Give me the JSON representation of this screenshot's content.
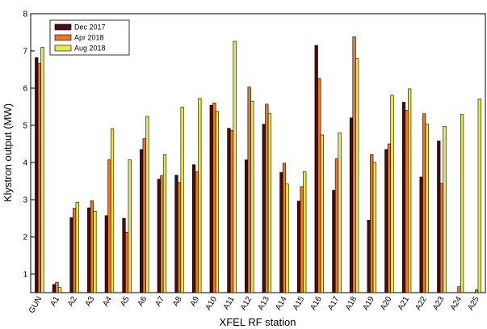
{
  "chart_data": {
    "type": "bar",
    "xlabel": "XFEL RF station",
    "ylabel": "Klystron output (MW)",
    "ylim": [
      0.5,
      8
    ],
    "yticks": [
      1,
      2,
      3,
      4,
      5,
      6,
      7,
      8
    ],
    "grid": false,
    "legend_position": "top-left",
    "categories": [
      "GUN",
      "A1",
      "A2",
      "A3",
      "A4",
      "A5",
      "A6",
      "A7",
      "A8",
      "A9",
      "A10",
      "A11",
      "A12",
      "A13",
      "A14",
      "A15",
      "A16",
      "A17",
      "A18",
      "A19",
      "A20",
      "A21",
      "A22",
      "A23",
      "A24",
      "A25"
    ],
    "series": [
      {
        "name": "Dec 2017",
        "color": "#4a0d0d",
        "values": [
          6.82,
          0.72,
          2.52,
          2.78,
          2.57,
          2.5,
          4.35,
          3.55,
          3.66,
          3.94,
          5.54,
          4.92,
          4.07,
          5.03,
          3.73,
          2.96,
          7.15,
          3.25,
          5.2,
          2.45,
          4.35,
          5.62,
          3.61,
          4.58,
          null,
          null
        ]
      },
      {
        "name": "Apr 2018",
        "color": "#e8782a",
        "values": [
          6.66,
          0.78,
          2.77,
          2.97,
          4.07,
          2.12,
          4.64,
          3.65,
          3.46,
          3.75,
          5.6,
          4.86,
          6.03,
          5.57,
          3.98,
          3.35,
          6.26,
          4.1,
          7.38,
          4.21,
          4.5,
          5.4,
          5.31,
          3.44,
          0.66,
          0.57
        ]
      },
      {
        "name": "Aug 2018",
        "color": "#e8e84a",
        "values": [
          7.1,
          0.64,
          2.93,
          2.69,
          4.91,
          4.07,
          5.24,
          4.21,
          5.49,
          5.72,
          5.37,
          7.26,
          5.65,
          5.31,
          3.42,
          3.75,
          4.74,
          4.8,
          6.8,
          4.0,
          5.81,
          5.98,
          5.03,
          4.97,
          5.29,
          5.71
        ]
      }
    ]
  }
}
